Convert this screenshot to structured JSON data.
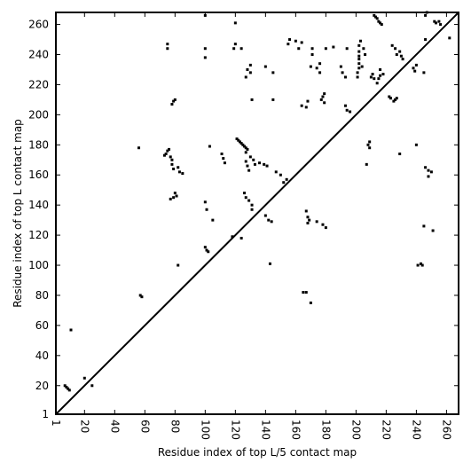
{
  "chart_data": {
    "type": "scatter",
    "xlabel": "Residue index of top L/5 contact map",
    "ylabel": "Residue index of top L contact map",
    "xlim": [
      1,
      268
    ],
    "ylim": [
      1,
      268
    ],
    "xticks": [
      1,
      20,
      40,
      60,
      80,
      100,
      120,
      140,
      160,
      180,
      200,
      220,
      240,
      260
    ],
    "yticks": [
      1,
      20,
      40,
      60,
      80,
      100,
      120,
      140,
      160,
      180,
      200,
      220,
      240,
      260
    ],
    "grid": false,
    "diagonal": true,
    "colors": {
      "points": "#000000",
      "axes": "#000000",
      "background": "#ffffff"
    },
    "series": [
      {
        "values": [
          [
            7,
            20
          ],
          [
            8,
            19
          ],
          [
            9,
            18
          ],
          [
            10,
            17
          ],
          [
            11,
            57
          ],
          [
            20,
            25
          ],
          [
            25,
            20
          ],
          [
            57,
            80
          ],
          [
            58,
            79
          ],
          [
            56,
            178
          ],
          [
            73,
            173
          ],
          [
            74,
            174
          ],
          [
            75,
            176
          ],
          [
            76,
            177
          ],
          [
            77,
            172
          ],
          [
            78,
            170
          ],
          [
            78,
            167
          ],
          [
            79,
            164
          ],
          [
            79,
            145
          ],
          [
            80,
            148
          ],
          [
            81,
            146
          ],
          [
            82,
            165
          ],
          [
            83,
            162
          ],
          [
            85,
            161
          ],
          [
            77,
            144
          ],
          [
            78,
            207
          ],
          [
            79,
            209
          ],
          [
            80,
            210
          ],
          [
            75,
            247
          ],
          [
            75,
            244
          ],
          [
            82,
            100
          ],
          [
            100,
            112
          ],
          [
            101,
            110
          ],
          [
            102,
            109
          ],
          [
            100,
            142
          ],
          [
            101,
            137
          ],
          [
            103,
            179
          ],
          [
            105,
            130
          ],
          [
            100,
            266
          ],
          [
            100,
            244
          ],
          [
            100,
            238
          ],
          [
            111,
            174
          ],
          [
            112,
            171
          ],
          [
            113,
            168
          ],
          [
            119,
            244
          ],
          [
            120,
            247
          ],
          [
            121,
            184
          ],
          [
            122,
            183
          ],
          [
            123,
            182
          ],
          [
            124,
            181
          ],
          [
            125,
            180
          ],
          [
            126,
            179
          ],
          [
            127,
            178
          ],
          [
            128,
            177
          ],
          [
            127,
            175
          ],
          [
            127,
            169
          ],
          [
            128,
            166
          ],
          [
            129,
            163
          ],
          [
            126,
            148
          ],
          [
            127,
            145
          ],
          [
            129,
            143
          ],
          [
            131,
            140
          ],
          [
            131,
            137
          ],
          [
            130,
            172
          ],
          [
            132,
            170
          ],
          [
            133,
            167
          ],
          [
            136,
            168
          ],
          [
            139,
            167
          ],
          [
            141,
            166
          ],
          [
            128,
            230
          ],
          [
            130,
            233
          ],
          [
            127,
            225
          ],
          [
            124,
            244
          ],
          [
            120,
            261
          ],
          [
            118,
            119
          ],
          [
            124,
            118
          ],
          [
            130,
            228
          ],
          [
            131,
            210
          ],
          [
            140,
            133
          ],
          [
            142,
            130
          ],
          [
            144,
            129
          ],
          [
            143,
            101
          ],
          [
            145,
            210
          ],
          [
            147,
            162
          ],
          [
            150,
            160
          ],
          [
            152,
            155
          ],
          [
            154,
            157
          ],
          [
            145,
            228
          ],
          [
            140,
            232
          ],
          [
            155,
            247
          ],
          [
            156,
            250
          ],
          [
            160,
            249
          ],
          [
            162,
            244
          ],
          [
            164,
            248
          ],
          [
            164,
            206
          ],
          [
            165,
            82
          ],
          [
            167,
            82
          ],
          [
            167,
            136
          ],
          [
            168,
            132
          ],
          [
            168,
            128
          ],
          [
            169,
            130
          ],
          [
            170,
            75
          ],
          [
            168,
            209
          ],
          [
            167,
            205
          ],
          [
            170,
            232
          ],
          [
            171,
            240
          ],
          [
            171,
            244
          ],
          [
            174,
            231
          ],
          [
            176,
            228
          ],
          [
            176,
            234
          ],
          [
            177,
            210
          ],
          [
            178,
            212
          ],
          [
            179,
            208
          ],
          [
            179,
            214
          ],
          [
            180,
            244
          ],
          [
            178,
            127
          ],
          [
            180,
            125
          ],
          [
            174,
            129
          ],
          [
            185,
            245
          ],
          [
            190,
            232
          ],
          [
            191,
            228
          ],
          [
            193,
            225
          ],
          [
            193,
            206
          ],
          [
            194,
            203
          ],
          [
            196,
            202
          ],
          [
            194,
            244
          ],
          [
            201,
            225
          ],
          [
            201,
            228
          ],
          [
            202,
            231
          ],
          [
            202,
            234
          ],
          [
            202,
            237
          ],
          [
            202,
            239
          ],
          [
            202,
            242
          ],
          [
            202,
            246
          ],
          [
            203,
            249
          ],
          [
            204,
            232
          ],
          [
            205,
            244
          ],
          [
            206,
            240
          ],
          [
            207,
            167
          ],
          [
            208,
            180
          ],
          [
            209,
            178
          ],
          [
            209,
            182
          ],
          [
            210,
            225
          ],
          [
            211,
            227
          ],
          [
            212,
            224
          ],
          [
            212,
            266
          ],
          [
            213,
            265
          ],
          [
            214,
            264
          ],
          [
            215,
            262
          ],
          [
            216,
            261
          ],
          [
            217,
            260
          ],
          [
            214,
            221
          ],
          [
            215,
            224
          ],
          [
            216,
            226
          ],
          [
            216,
            230
          ],
          [
            218,
            227
          ],
          [
            222,
            212
          ],
          [
            223,
            211
          ],
          [
            225,
            209
          ],
          [
            226,
            210
          ],
          [
            227,
            211
          ],
          [
            224,
            246
          ],
          [
            226,
            244
          ],
          [
            227,
            240
          ],
          [
            229,
            242
          ],
          [
            229,
            174
          ],
          [
            230,
            239
          ],
          [
            231,
            237
          ],
          [
            238,
            231
          ],
          [
            239,
            229
          ],
          [
            240,
            233
          ],
          [
            241,
            100
          ],
          [
            243,
            101
          ],
          [
            244,
            100
          ],
          [
            240,
            180
          ],
          [
            245,
            228
          ],
          [
            246,
            165
          ],
          [
            248,
            163
          ],
          [
            248,
            159
          ],
          [
            250,
            162
          ],
          [
            251,
            123
          ],
          [
            252,
            262
          ],
          [
            253,
            261
          ],
          [
            255,
            262
          ],
          [
            256,
            260
          ],
          [
            246,
            266
          ],
          [
            247,
            268
          ],
          [
            245,
            126
          ],
          [
            262,
            251
          ],
          [
            246,
            250
          ]
        ]
      }
    ]
  }
}
